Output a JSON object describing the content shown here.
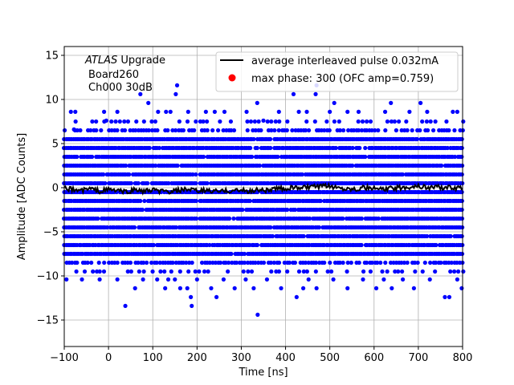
{
  "chart_data": {
    "type": "scatter",
    "xlabel": "Time [ns]",
    "ylabel": "Amplitude [ADC Counts]",
    "xlim": [
      -100,
      800
    ],
    "ylim": [
      -18,
      16
    ],
    "x_ticks": [
      -100,
      0,
      100,
      200,
      300,
      400,
      500,
      600,
      700,
      800
    ],
    "y_ticks": [
      -15,
      -10,
      -5,
      0,
      5,
      10,
      15
    ],
    "grid": true,
    "legend_position": "upper-right",
    "annotation": {
      "experiment": "ATLAS",
      "experiment_suffix": " Upgrade",
      "line2": "Board260",
      "line3": "Ch000 30dB"
    },
    "series": [
      {
        "name": "average interleaved pulse 0.032mA",
        "kind": "line",
        "color": "#000000",
        "description_level": 0.0,
        "x": [
          -100,
          -80,
          -60,
          -40,
          -20,
          0,
          20,
          40,
          60,
          80,
          100,
          120,
          140,
          160,
          180,
          200,
          220,
          240,
          260,
          280,
          300,
          320,
          340,
          360,
          380,
          400,
          420,
          440,
          460,
          480,
          500,
          520,
          540,
          560,
          580,
          600,
          620,
          640,
          660,
          680,
          700,
          720,
          740,
          760,
          780,
          800
        ],
        "y": [
          -0.1,
          -0.2,
          -0.3,
          -0.1,
          -0.4,
          -0.2,
          -0.3,
          -0.5,
          -0.2,
          -0.4,
          -0.3,
          -0.4,
          -0.5,
          -0.3,
          -0.2,
          -0.4,
          -0.3,
          -0.4,
          -0.4,
          -0.3,
          -0.3,
          -0.4,
          -0.2,
          -0.3,
          -0.1,
          -0.1,
          0.0,
          0.0,
          0.1,
          0.1,
          0.2,
          0.0,
          -0.1,
          -0.1,
          0.0,
          -0.1,
          -0.2,
          -0.1,
          0.0,
          0.1,
          0.2,
          0.0,
          0.1,
          0.0,
          0.0,
          -0.1
        ]
      },
      {
        "name": "max phase: 300 (OFC amp=0.759)",
        "kind": "scatter",
        "color": "#0000ff",
        "legend_color": "#ff0000",
        "x_range": [
          -100,
          800
        ],
        "dense_levels": [
          -7.5,
          -6.5,
          -5.5,
          -4.5,
          -3.5,
          -2.5,
          -1.5,
          -0.5,
          0.5,
          1.5,
          2.5,
          3.5,
          4.5,
          5.5
        ],
        "medium_levels": [
          -8.5,
          6.5
        ],
        "sparse_levels": [
          -9.5,
          7.5
        ],
        "outliers": [
          {
            "x": -85,
            "y": 8.6
          },
          {
            "x": -75,
            "y": 8.6
          },
          {
            "x": -78,
            "y": 6.6
          },
          {
            "x": 20,
            "y": 8.6
          },
          {
            "x": -10,
            "y": 8.6
          },
          {
            "x": -5,
            "y": 7.6
          },
          {
            "x": 72,
            "y": 10.6
          },
          {
            "x": 90,
            "y": 9.6
          },
          {
            "x": 112,
            "y": 8.6
          },
          {
            "x": 130,
            "y": 8.6
          },
          {
            "x": 140,
            "y": 8.6
          },
          {
            "x": 152,
            "y": 10.6
          },
          {
            "x": 155,
            "y": 11.6
          },
          {
            "x": 180,
            "y": 8.6
          },
          {
            "x": 220,
            "y": 8.6
          },
          {
            "x": 240,
            "y": 8.6
          },
          {
            "x": 262,
            "y": 8.6
          },
          {
            "x": 312,
            "y": 8.6
          },
          {
            "x": 336,
            "y": 9.6
          },
          {
            "x": 350,
            "y": 7.6
          },
          {
            "x": 385,
            "y": 8.6
          },
          {
            "x": 418,
            "y": 10.6
          },
          {
            "x": 430,
            "y": 8.6
          },
          {
            "x": 448,
            "y": 8.6
          },
          {
            "x": 468,
            "y": 10.6
          },
          {
            "x": 470,
            "y": 11.6
          },
          {
            "x": 500,
            "y": 8.6
          },
          {
            "x": 510,
            "y": 9.6
          },
          {
            "x": 540,
            "y": 8.6
          },
          {
            "x": 565,
            "y": 8.6
          },
          {
            "x": 625,
            "y": 8.6
          },
          {
            "x": 638,
            "y": 9.6
          },
          {
            "x": 680,
            "y": 8.6
          },
          {
            "x": 705,
            "y": 9.6
          },
          {
            "x": 720,
            "y": 8.6
          },
          {
            "x": 778,
            "y": 8.6
          },
          {
            "x": 788,
            "y": 8.6
          },
          {
            "x": -95,
            "y": -10.4
          },
          {
            "x": -60,
            "y": -10.4
          },
          {
            "x": -20,
            "y": -10.4
          },
          {
            "x": 20,
            "y": -10.4
          },
          {
            "x": 38,
            "y": -13.4
          },
          {
            "x": 78,
            "y": -10.4
          },
          {
            "x": 60,
            "y": -11.4
          },
          {
            "x": 110,
            "y": -10.4
          },
          {
            "x": 128,
            "y": -11.4
          },
          {
            "x": 135,
            "y": -10.4
          },
          {
            "x": 150,
            "y": -10.4
          },
          {
            "x": 162,
            "y": -11.4
          },
          {
            "x": 178,
            "y": -11.4
          },
          {
            "x": 186,
            "y": -12.4
          },
          {
            "x": 188,
            "y": -13.4
          },
          {
            "x": 200,
            "y": -10.4
          },
          {
            "x": 232,
            "y": -11.4
          },
          {
            "x": 244,
            "y": -12.4
          },
          {
            "x": 260,
            "y": -10.4
          },
          {
            "x": 285,
            "y": -11.4
          },
          {
            "x": 310,
            "y": -10.4
          },
          {
            "x": 328,
            "y": -11.4
          },
          {
            "x": 337,
            "y": -14.4
          },
          {
            "x": 358,
            "y": -10.4
          },
          {
            "x": 390,
            "y": -11.4
          },
          {
            "x": 425,
            "y": -12.4
          },
          {
            "x": 440,
            "y": -11.4
          },
          {
            "x": 452,
            "y": -10.4
          },
          {
            "x": 470,
            "y": -11.4
          },
          {
            "x": 508,
            "y": -10.4
          },
          {
            "x": 540,
            "y": -11.4
          },
          {
            "x": 575,
            "y": -10.4
          },
          {
            "x": 605,
            "y": -11.4
          },
          {
            "x": 622,
            "y": -10.4
          },
          {
            "x": 640,
            "y": -11.4
          },
          {
            "x": 665,
            "y": -10.4
          },
          {
            "x": 690,
            "y": -11.4
          },
          {
            "x": 726,
            "y": -10.4
          },
          {
            "x": 760,
            "y": -12.4
          },
          {
            "x": 770,
            "y": -12.4
          },
          {
            "x": 788,
            "y": -10.4
          },
          {
            "x": 798,
            "y": -11.4
          }
        ]
      }
    ]
  }
}
